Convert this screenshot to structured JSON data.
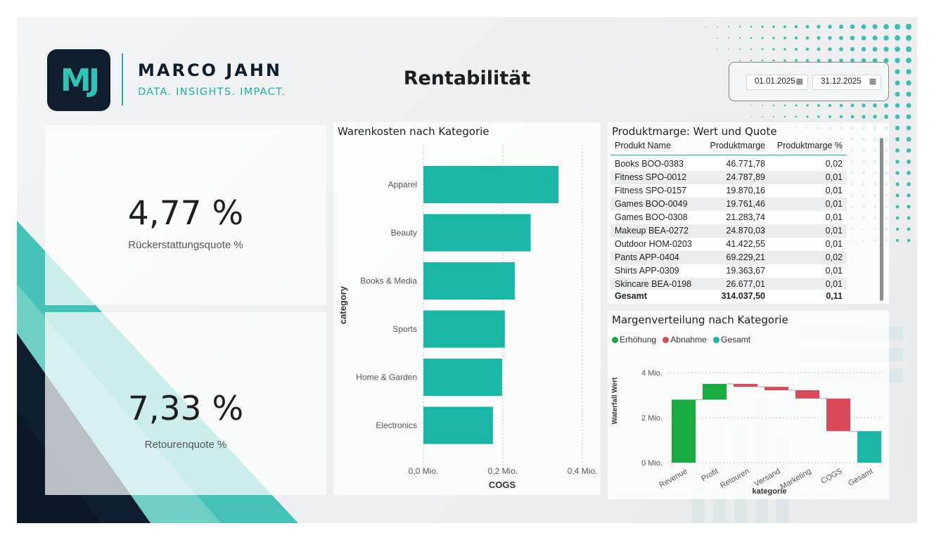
{
  "brand": {
    "monogram": "MJ",
    "name": "MARCO JAHN",
    "tagline": "DATA. INSIGHTS. IMPACT."
  },
  "page_title": "Rentabilität",
  "date_slicer": {
    "start": "01.01.2025",
    "end": "31.12.2025",
    "icon": "calendar-icon"
  },
  "kpis": [
    {
      "value": "4,77 %",
      "label": "Rückerstattungsquote %"
    },
    {
      "value": "7,33 %",
      "label": "Retourenquote %"
    }
  ],
  "colors": {
    "teal": "#1ab7a7",
    "green": "#1aab40",
    "red": "#d94a5a",
    "navy": "#0e1e2e"
  },
  "bar_chart": {
    "title": "Warenkosten nach Kategorie",
    "ylabel": "category",
    "xlabel": "COGS",
    "ticks": [
      "0,0 Mio.",
      "0,2 Mio.",
      "0,4 Mio."
    ]
  },
  "table": {
    "title": "Produktmarge: Wert und Quote",
    "columns": [
      "Produkt Name",
      "Produktmarge",
      "Produktmarge %"
    ],
    "rows": [
      [
        "Books BOO-0383",
        "46.771,78",
        "0,02"
      ],
      [
        "Fitness SPO-0012",
        "24.787,89",
        "0,01"
      ],
      [
        "Fitness SPO-0157",
        "19.870,16",
        "0,01"
      ],
      [
        "Games BOO-0049",
        "19.761,46",
        "0,01"
      ],
      [
        "Games BOO-0308",
        "21.283,74",
        "0,01"
      ],
      [
        "Makeup BEA-0272",
        "24.870,03",
        "0,01"
      ],
      [
        "Outdoor HOM-0203",
        "41.422,55",
        "0,01"
      ],
      [
        "Pants APP-0404",
        "69.229,21",
        "0,02"
      ],
      [
        "Shirts APP-0309",
        "19.363,67",
        "0,01"
      ],
      [
        "Skincare BEA-0198",
        "26.677,01",
        "0,01"
      ]
    ],
    "total": [
      "Gesamt",
      "314.037,50",
      "0,11"
    ]
  },
  "waterfall": {
    "title": "Margenverteilung nach Kategorie",
    "legend": [
      {
        "label": "Erhöhung",
        "color": "#1aab40"
      },
      {
        "label": "Abnahme",
        "color": "#d94a5a"
      },
      {
        "label": "Gesamt",
        "color": "#1ab7a7"
      }
    ],
    "ylabel": "Waterfall Wert",
    "xlabel": "kategorie",
    "ticks": [
      "0 Mio.",
      "2 Mio.",
      "4 Mio."
    ]
  },
  "chart_data": [
    {
      "type": "bar",
      "orientation": "horizontal",
      "title": "Warenkosten nach Kategorie",
      "xlabel": "COGS",
      "ylabel": "category",
      "categories": [
        "Apparel",
        "Beauty",
        "Books & Media",
        "Sports",
        "Home & Garden",
        "Electronics"
      ],
      "values": [
        0.34,
        0.27,
        0.23,
        0.205,
        0.198,
        0.175
      ],
      "unit": "Mio.",
      "xlim": [
        0,
        0.4
      ],
      "grid": true
    },
    {
      "type": "waterfall",
      "title": "Margenverteilung nach Kategorie",
      "xlabel": "kategorie",
      "ylabel": "Waterfall Wert",
      "categories": [
        "Revenue",
        "Profit",
        "Retouren",
        "Versand",
        "Marketing",
        "COGS",
        "Gesamt"
      ],
      "steps": [
        {
          "start": 0,
          "end": 2.8,
          "kind": "increase"
        },
        {
          "start": 2.8,
          "end": 3.5,
          "kind": "increase"
        },
        {
          "start": 3.5,
          "end": 3.37,
          "kind": "decrease"
        },
        {
          "start": 3.37,
          "end": 3.22,
          "kind": "decrease"
        },
        {
          "start": 3.22,
          "end": 2.85,
          "kind": "decrease"
        },
        {
          "start": 2.85,
          "end": 1.4,
          "kind": "decrease"
        },
        {
          "start": 0,
          "end": 1.4,
          "kind": "total"
        }
      ],
      "unit": "Mio.",
      "ylim": [
        0,
        4
      ],
      "grid": true
    }
  ]
}
